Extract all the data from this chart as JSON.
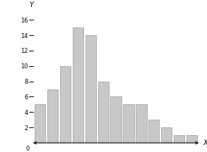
{
  "bar_values": [
    5,
    7,
    10,
    15,
    14,
    8,
    6,
    5,
    5,
    3,
    2,
    1,
    1
  ],
  "bar_color": "#c8c8c8",
  "bar_edge_color": "#999999",
  "ylim": [
    0,
    17
  ],
  "yticks": [
    2,
    4,
    6,
    8,
    10,
    12,
    14,
    16
  ],
  "xlabel": "X",
  "ylabel": "Y",
  "background_color": "#ffffff",
  "bar_width": 0.85,
  "figsize": [
    2.93,
    2.16
  ],
  "dpi": 100
}
